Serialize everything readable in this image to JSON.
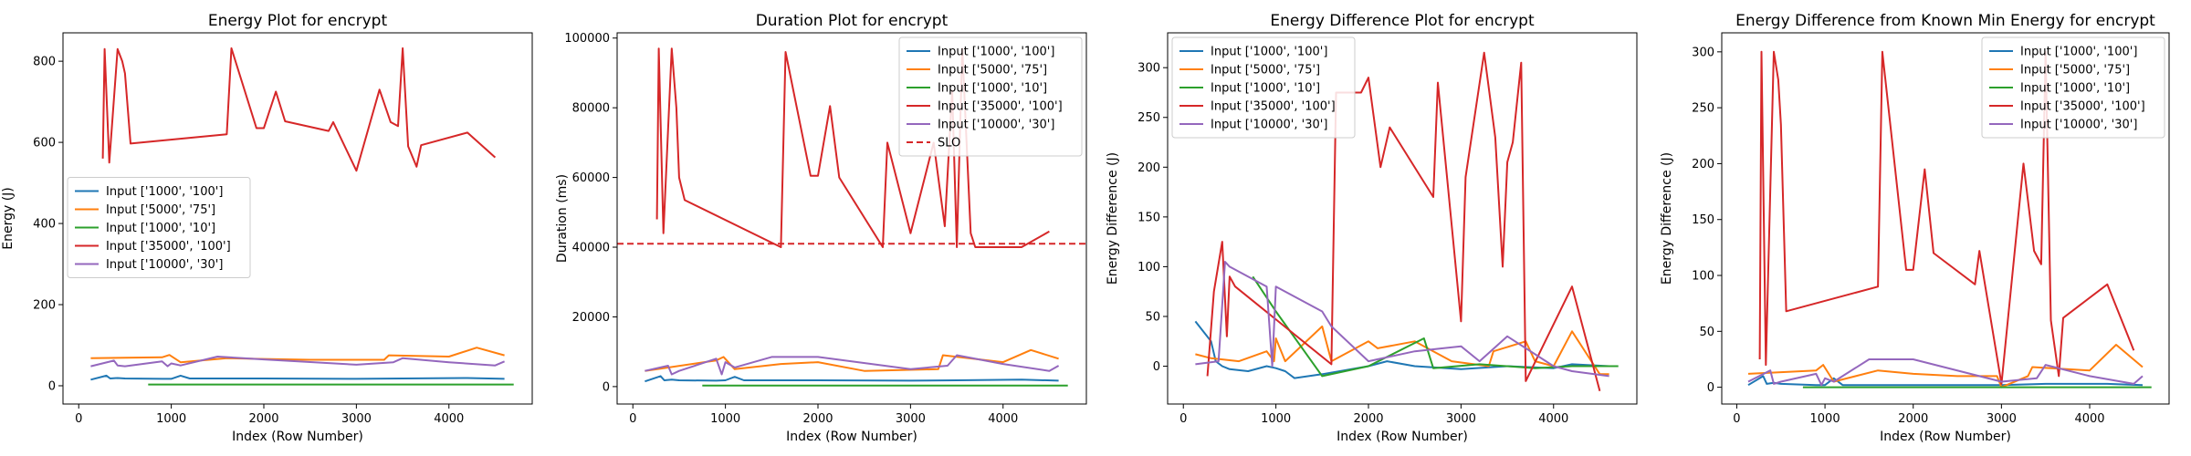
{
  "colors": {
    "series": [
      "#1f77b4",
      "#ff7f0e",
      "#2ca02c",
      "#d62728",
      "#9467bd"
    ],
    "slo": "#d62728"
  },
  "chart_data": [
    {
      "type": "line",
      "title": "Energy Plot for encrypt",
      "xlabel": "Index (Row Number)",
      "ylabel": "Energy (J)",
      "xlim": [
        -170,
        4900
      ],
      "ylim": [
        -45,
        870
      ],
      "xticks": [
        0,
        1000,
        2000,
        3000,
        4000
      ],
      "yticks": [
        0,
        200,
        400,
        600,
        800
      ],
      "legend": "center-left",
      "series": [
        {
          "name": "Input ['1000', '100']",
          "x": [
            130,
            300,
            340,
            420,
            500,
            900,
            1000,
            1100,
            1200,
            2000,
            3000,
            3500,
            4200,
            4600
          ],
          "y": [
            15,
            25,
            18,
            19,
            18,
            17,
            17,
            25,
            18,
            18,
            17,
            18,
            19,
            17
          ]
        },
        {
          "name": "Input ['5000', '75']",
          "x": [
            130,
            900,
            980,
            1100,
            1600,
            2000,
            2500,
            3300,
            3350,
            4000,
            4300,
            4600
          ],
          "y": [
            68,
            70,
            76,
            58,
            68,
            66,
            64,
            64,
            75,
            72,
            94,
            75
          ]
        },
        {
          "name": "Input ['1000', '10']",
          "x": [
            750,
            4700
          ],
          "y": [
            3,
            3
          ]
        },
        {
          "name": "Input ['35000', '100']",
          "x": [
            260,
            280,
            330,
            420,
            470,
            500,
            560,
            1600,
            1650,
            1920,
            2000,
            2130,
            2230,
            2700,
            2750,
            3000,
            3250,
            3370,
            3450,
            3500,
            3560,
            3650,
            3700,
            4200,
            4500
          ],
          "y": [
            560,
            830,
            550,
            830,
            800,
            770,
            597,
            620,
            832,
            635,
            635,
            725,
            652,
            628,
            650,
            530,
            730,
            650,
            640,
            832,
            590,
            540,
            593,
            624,
            563
          ]
        },
        {
          "name": "Input ['10000', '30']",
          "x": [
            130,
            380,
            420,
            500,
            900,
            960,
            1000,
            1100,
            1500,
            2000,
            3000,
            3400,
            3500,
            4000,
            4500,
            4600
          ],
          "y": [
            48,
            62,
            50,
            48,
            60,
            48,
            55,
            50,
            72,
            65,
            52,
            58,
            68,
            58,
            50,
            60
          ]
        }
      ]
    },
    {
      "type": "line",
      "title": "Duration Plot for encrypt",
      "xlabel": "Index (Row Number)",
      "ylabel": "Duration (ms)",
      "xlim": [
        -170,
        4900
      ],
      "ylim": [
        -5000,
        101500
      ],
      "xticks": [
        0,
        1000,
        2000,
        3000,
        4000
      ],
      "yticks": [
        0,
        20000,
        40000,
        60000,
        80000,
        100000
      ],
      "legend": "top-right",
      "slo": {
        "name": "SLO",
        "value": 41000
      },
      "series": [
        {
          "name": "Input ['1000', '100']",
          "x": [
            130,
            300,
            340,
            420,
            500,
            900,
            1000,
            1100,
            1200,
            2000,
            3000,
            3500,
            4200,
            4600
          ],
          "y": [
            1500,
            3000,
            1800,
            2000,
            1800,
            1700,
            1800,
            2800,
            1800,
            1800,
            1700,
            1800,
            2000,
            1700
          ]
        },
        {
          "name": "Input ['5000', '75']",
          "x": [
            130,
            900,
            980,
            1100,
            1600,
            2000,
            2500,
            3300,
            3350,
            4000,
            4300,
            4600
          ],
          "y": [
            4500,
            7500,
            8500,
            5000,
            6500,
            7000,
            4500,
            5000,
            9000,
            7000,
            10500,
            8000
          ]
        },
        {
          "name": "Input ['1000', '10']",
          "x": [
            750,
            4700
          ],
          "y": [
            300,
            300
          ]
        },
        {
          "name": "Input ['35000', '100']",
          "x": [
            260,
            280,
            330,
            420,
            470,
            500,
            560,
            1600,
            1650,
            1920,
            2000,
            2130,
            2230,
            2700,
            2750,
            3000,
            3250,
            3370,
            3450,
            3500,
            3560,
            3650,
            3700,
            4200,
            4500
          ],
          "y": [
            48000,
            97000,
            44000,
            97000,
            80000,
            60000,
            53500,
            40000,
            96000,
            60500,
            60500,
            80500,
            60000,
            40000,
            70000,
            44000,
            70000,
            46000,
            85000,
            40000,
            97000,
            44000,
            40000,
            40000,
            44500
          ]
        },
        {
          "name": "Input ['10000', '30']",
          "x": [
            130,
            380,
            420,
            500,
            900,
            960,
            1000,
            1100,
            1500,
            2000,
            3000,
            3400,
            3500,
            4000,
            4500,
            4600
          ],
          "y": [
            4500,
            6000,
            3500,
            4500,
            8000,
            3500,
            7000,
            5500,
            8500,
            8500,
            5000,
            6000,
            9000,
            6500,
            4500,
            6000
          ]
        }
      ]
    },
    {
      "type": "line",
      "title": "Energy Difference Plot for encrypt",
      "xlabel": "Index (Row Number)",
      "ylabel": "Energy Difference (J)",
      "xlim": [
        -170,
        4900
      ],
      "ylim": [
        -38,
        335
      ],
      "xticks": [
        0,
        1000,
        2000,
        3000,
        4000
      ],
      "yticks": [
        0,
        50,
        100,
        150,
        200,
        250,
        300
      ],
      "legend": "top-left",
      "series": [
        {
          "name": "Input ['1000', '100']",
          "x": [
            130,
            300,
            350,
            420,
            500,
            700,
            900,
            1000,
            1100,
            1200,
            1500,
            2000,
            2200,
            2500,
            3000,
            3500,
            4000,
            4200,
            4600
          ],
          "y": [
            45,
            25,
            5,
            0,
            -3,
            -5,
            0,
            -2,
            -5,
            -12,
            -8,
            0,
            5,
            0,
            -3,
            0,
            -2,
            2,
            0
          ]
        },
        {
          "name": "Input ['5000', '75']",
          "x": [
            130,
            300,
            600,
            900,
            980,
            1000,
            1100,
            1500,
            1600,
            2000,
            2100,
            2500,
            2900,
            3300,
            3350,
            3700,
            3800,
            4000,
            4200,
            4500,
            4600
          ],
          "y": [
            12,
            8,
            5,
            15,
            5,
            28,
            5,
            40,
            5,
            25,
            18,
            25,
            5,
            0,
            15,
            25,
            5,
            0,
            35,
            -8,
            -8
          ]
        },
        {
          "name": "Input ['1000', '10']",
          "x": [
            750,
            1000,
            1500,
            2000,
            2600,
            2700,
            3200,
            3800,
            4200,
            4700
          ],
          "y": [
            90,
            55,
            -10,
            0,
            28,
            -2,
            2,
            -2,
            0,
            0
          ]
        },
        {
          "name": "Input ['35000', '100']",
          "x": [
            260,
            330,
            420,
            470,
            500,
            560,
            1600,
            1650,
            1920,
            2000,
            2130,
            2230,
            2700,
            2750,
            3000,
            3050,
            3250,
            3370,
            3450,
            3500,
            3560,
            3650,
            3700,
            4200,
            4500
          ],
          "y": [
            -10,
            75,
            125,
            30,
            90,
            80,
            2,
            275,
            275,
            290,
            200,
            240,
            170,
            285,
            45,
            190,
            315,
            230,
            100,
            205,
            225,
            305,
            -15,
            80,
            -25
          ]
        },
        {
          "name": "Input ['10000', '30']",
          "x": [
            130,
            380,
            450,
            500,
            900,
            960,
            1000,
            1100,
            1500,
            1600,
            2000,
            2500,
            3000,
            3200,
            3500,
            4000,
            4200,
            4600
          ],
          "y": [
            2,
            5,
            105,
            100,
            80,
            0,
            80,
            75,
            55,
            40,
            5,
            15,
            20,
            5,
            30,
            0,
            -5,
            -10
          ]
        }
      ]
    },
    {
      "type": "line",
      "title": "Energy Difference from Known Min Energy for encrypt",
      "xlabel": "Index (Row Number)",
      "ylabel": "Energy Difference (J)",
      "xlim": [
        -170,
        4900
      ],
      "ylim": [
        -15,
        317
      ],
      "xticks": [
        0,
        1000,
        2000,
        3000,
        4000
      ],
      "yticks": [
        0,
        50,
        100,
        150,
        200,
        250,
        300
      ],
      "legend": "top-right",
      "series": [
        {
          "name": "Input ['1000', '100']",
          "x": [
            130,
            300,
            340,
            420,
            500,
            900,
            1000,
            1100,
            1200,
            2000,
            3000,
            3500,
            4200,
            4600
          ],
          "y": [
            2,
            10,
            3,
            4,
            3,
            2,
            2,
            8,
            2,
            2,
            2,
            3,
            3,
            2
          ]
        },
        {
          "name": "Input ['5000', '75']",
          "x": [
            130,
            900,
            980,
            1100,
            1600,
            2000,
            2500,
            2950,
            3000,
            3300,
            3350,
            4000,
            4300,
            4600
          ],
          "y": [
            12,
            15,
            20,
            5,
            15,
            12,
            10,
            10,
            0,
            10,
            18,
            15,
            38,
            18
          ]
        },
        {
          "name": "Input ['1000', '10']",
          "x": [
            750,
            4700
          ],
          "y": [
            0,
            0
          ]
        },
        {
          "name": "Input ['35000', '100']",
          "x": [
            260,
            280,
            330,
            420,
            470,
            500,
            560,
            1600,
            1650,
            1920,
            2000,
            2130,
            2230,
            2700,
            2750,
            3000,
            3250,
            3370,
            3450,
            3500,
            3560,
            3650,
            3700,
            4200,
            4500
          ],
          "y": [
            25,
            300,
            20,
            300,
            275,
            235,
            68,
            90,
            300,
            105,
            105,
            195,
            120,
            92,
            122,
            3,
            200,
            122,
            110,
            300,
            60,
            10,
            62,
            92,
            33
          ]
        },
        {
          "name": "Input ['10000', '30']",
          "x": [
            130,
            380,
            420,
            500,
            900,
            960,
            1000,
            1100,
            1500,
            2000,
            3000,
            3400,
            3500,
            4000,
            4500,
            4600
          ],
          "y": [
            5,
            15,
            3,
            5,
            12,
            2,
            8,
            5,
            25,
            25,
            5,
            8,
            20,
            10,
            3,
            10
          ]
        }
      ]
    }
  ]
}
